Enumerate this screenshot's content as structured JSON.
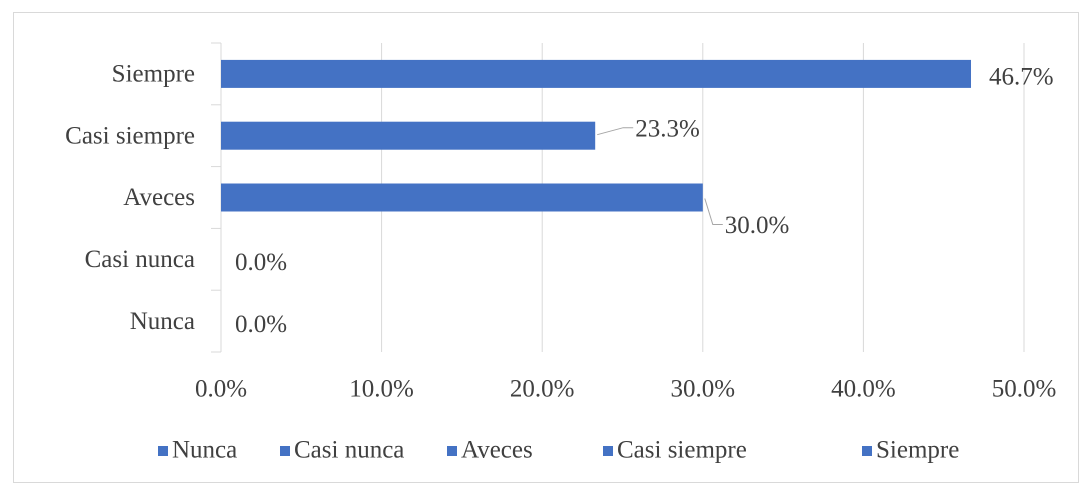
{
  "chart_data": {
    "type": "bar",
    "orientation": "horizontal",
    "categories": [
      "Nunca",
      "Casi nunca",
      "Aveces",
      "Casi siempre",
      "Siempre"
    ],
    "values": [
      0,
      0,
      30.0,
      23.3,
      46.7
    ],
    "value_labels": [
      "0.0%",
      "0.0%",
      "30.0%",
      "23.3%",
      "46.7%"
    ],
    "color": "#4472c4",
    "xlim": [
      0,
      50
    ],
    "xticks": [
      {
        "value": 0,
        "label": "0.0%"
      },
      {
        "value": 10,
        "label": "10.0%"
      },
      {
        "value": 20,
        "label": "20.0%"
      },
      {
        "value": 30,
        "label": "30.0%"
      },
      {
        "value": 40,
        "label": "40.0%"
      },
      {
        "value": 50,
        "label": "50.0%"
      }
    ],
    "grid": true,
    "legend": "bottom"
  }
}
